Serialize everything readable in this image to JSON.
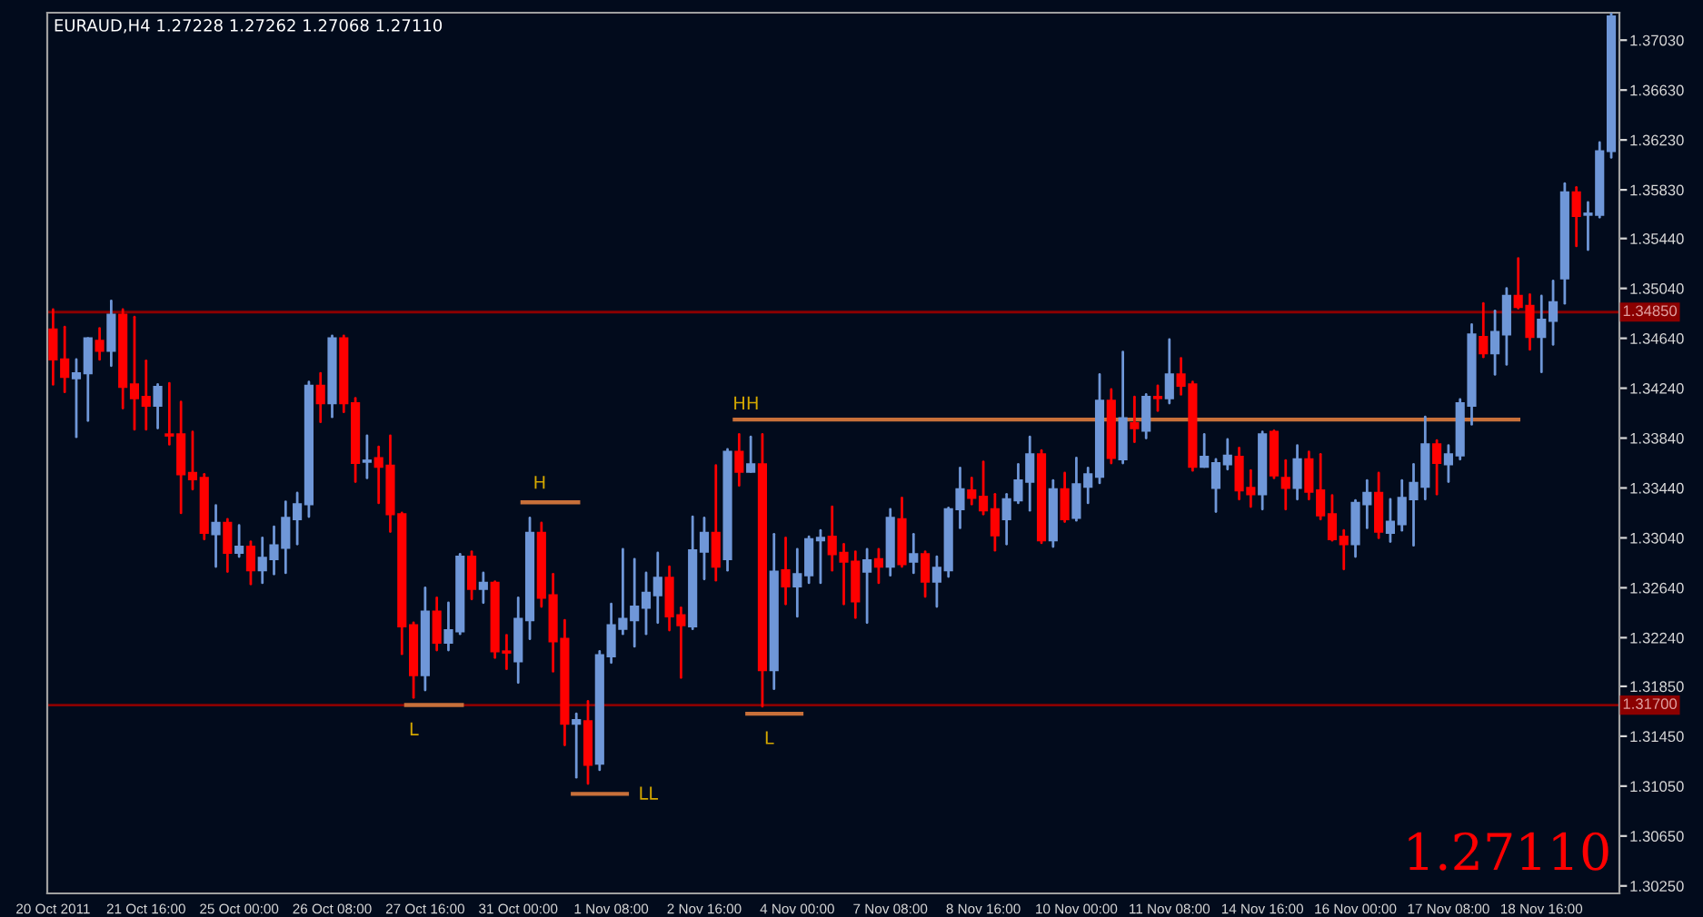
{
  "chart_data": {
    "type": "candlestick",
    "title": "EURAUD,H4 1.27228 1.27262 1.27068 1.27110",
    "categories": [
      "20 Oct 2011",
      null,
      null,
      null,
      null,
      null,
      null,
      null,
      "21 Oct 16:00",
      null,
      null,
      null,
      null,
      null,
      null,
      null,
      "25 Oct 00:00",
      null,
      null,
      null,
      null,
      null,
      null,
      null,
      "26 Oct 08:00",
      null,
      null,
      null,
      null,
      null,
      null,
      null,
      "27 Oct 16:00",
      null,
      null,
      null,
      null,
      null,
      null,
      null,
      "31 Oct 00:00",
      null,
      null,
      null,
      null,
      null,
      null,
      null,
      "1 Nov 08:00",
      null,
      null,
      null,
      null,
      null,
      null,
      null,
      "2 Nov 16:00",
      null,
      null,
      null,
      null,
      null,
      null,
      null,
      "4 Nov 00:00",
      null,
      null,
      null,
      null,
      null,
      null,
      null,
      "7 Nov 08:00",
      null,
      null,
      null,
      null,
      null,
      null,
      null,
      "8 Nov 16:00",
      null,
      null,
      null,
      null,
      null,
      null,
      null,
      "10 Nov 00:00",
      null,
      null,
      null,
      null,
      null,
      null,
      null,
      "11 Nov 08:00",
      null,
      null,
      null,
      null,
      null,
      null,
      null,
      "14 Nov 16:00",
      null,
      null,
      null,
      null,
      null,
      null,
      null,
      "16 Nov 00:00",
      null,
      null,
      null,
      null,
      null,
      null,
      null,
      "17 Nov 08:00",
      null,
      null,
      null,
      null,
      null,
      null,
      null,
      "18 Nov 16:00",
      null,
      null,
      null,
      null,
      null,
      null
    ],
    "ohlc": [
      [
        1.3471,
        1.3487,
        1.3427,
        1.3447
      ],
      [
        1.3447,
        1.3473,
        1.3421,
        1.3433
      ],
      [
        1.3432,
        1.3447,
        1.3385,
        1.3436
      ],
      [
        1.3436,
        1.3464,
        1.3398,
        1.3464
      ],
      [
        1.3462,
        1.3472,
        1.3447,
        1.3454
      ],
      [
        1.3454,
        1.3494,
        1.3442,
        1.3483
      ],
      [
        1.3483,
        1.3487,
        1.3408,
        1.3425
      ],
      [
        1.3427,
        1.3481,
        1.3391,
        1.3416
      ],
      [
        1.3417,
        1.3446,
        1.3391,
        1.341
      ],
      [
        1.341,
        1.3427,
        1.3392,
        1.3425
      ],
      [
        1.3387,
        1.3428,
        1.3379,
        1.3386
      ],
      [
        1.3387,
        1.3413,
        1.3324,
        1.3355
      ],
      [
        1.3356,
        1.3389,
        1.3343,
        1.3351
      ],
      [
        1.3352,
        1.3355,
        1.3303,
        1.3308
      ],
      [
        1.3307,
        1.333,
        1.3281,
        1.3316
      ],
      [
        1.3316,
        1.3319,
        1.3277,
        1.3292
      ],
      [
        1.3292,
        1.3314,
        1.3289,
        1.3297
      ],
      [
        1.3297,
        1.3301,
        1.3267,
        1.3278
      ],
      [
        1.3278,
        1.3304,
        1.3268,
        1.3288
      ],
      [
        1.3287,
        1.3313,
        1.3275,
        1.3298
      ],
      [
        1.3296,
        1.3333,
        1.3276,
        1.332
      ],
      [
        1.3319,
        1.334,
        1.3299,
        1.3331
      ],
      [
        1.3331,
        1.3429,
        1.3321,
        1.3426
      ],
      [
        1.3426,
        1.3436,
        1.3397,
        1.3412
      ],
      [
        1.3412,
        1.3466,
        1.3401,
        1.3464
      ],
      [
        1.3464,
        1.3466,
        1.3405,
        1.3412
      ],
      [
        1.3412,
        1.3416,
        1.3349,
        1.3364
      ],
      [
        1.3365,
        1.3386,
        1.3352,
        1.3366
      ],
      [
        1.3368,
        1.3377,
        1.3332,
        1.3361
      ],
      [
        1.3362,
        1.3386,
        1.3309,
        1.3323
      ],
      [
        1.3323,
        1.3324,
        1.3211,
        1.3233
      ],
      [
        1.3234,
        1.3236,
        1.3176,
        1.3194
      ],
      [
        1.3194,
        1.3264,
        1.3182,
        1.3245
      ],
      [
        1.3245,
        1.3256,
        1.3214,
        1.322
      ],
      [
        1.322,
        1.3252,
        1.3214,
        1.323
      ],
      [
        1.3229,
        1.3291,
        1.3227,
        1.3289
      ],
      [
        1.3289,
        1.3293,
        1.3255,
        1.3263
      ],
      [
        1.3263,
        1.3276,
        1.3252,
        1.3268
      ],
      [
        1.3268,
        1.3269,
        1.3208,
        1.3213
      ],
      [
        1.3213,
        1.3226,
        1.3199,
        1.3212
      ],
      [
        1.3205,
        1.3256,
        1.3188,
        1.3239
      ],
      [
        1.3238,
        1.332,
        1.3223,
        1.3308
      ],
      [
        1.3308,
        1.3316,
        1.3249,
        1.3256
      ],
      [
        1.3258,
        1.3275,
        1.3197,
        1.3221
      ],
      [
        1.3223,
        1.3238,
        1.3138,
        1.3155
      ],
      [
        1.3155,
        1.3163,
        1.3112,
        1.3158
      ],
      [
        1.3157,
        1.3173,
        1.3107,
        1.3122
      ],
      [
        1.3123,
        1.3213,
        1.3118,
        1.321
      ],
      [
        1.3209,
        1.3251,
        1.3204,
        1.3234
      ],
      [
        1.3231,
        1.3295,
        1.3227,
        1.3239
      ],
      [
        1.3238,
        1.3287,
        1.3217,
        1.3249
      ],
      [
        1.3248,
        1.3276,
        1.3227,
        1.326
      ],
      [
        1.3258,
        1.3292,
        1.3236,
        1.3272
      ],
      [
        1.3272,
        1.3281,
        1.323,
        1.3241
      ],
      [
        1.3242,
        1.3248,
        1.3192,
        1.3234
      ],
      [
        1.3233,
        1.3321,
        1.3231,
        1.3294
      ],
      [
        1.3293,
        1.332,
        1.3271,
        1.3308
      ],
      [
        1.3308,
        1.3362,
        1.327,
        1.3281
      ],
      [
        1.3287,
        1.3375,
        1.3278,
        1.3373
      ],
      [
        1.3373,
        1.3387,
        1.3346,
        1.3357
      ],
      [
        1.3357,
        1.3385,
        1.3357,
        1.3363
      ],
      [
        1.3363,
        1.3387,
        1.3169,
        1.3198
      ],
      [
        1.3198,
        1.3307,
        1.3183,
        1.3277
      ],
      [
        1.3278,
        1.3304,
        1.3251,
        1.3265
      ],
      [
        1.3265,
        1.3295,
        1.3241,
        1.3275
      ],
      [
        1.3274,
        1.3305,
        1.3268,
        1.3303
      ],
      [
        1.3302,
        1.331,
        1.3268,
        1.3304
      ],
      [
        1.3305,
        1.3329,
        1.3278,
        1.3291
      ],
      [
        1.3292,
        1.3299,
        1.3251,
        1.3285
      ],
      [
        1.3285,
        1.3293,
        1.324,
        1.3253
      ],
      [
        1.3277,
        1.3295,
        1.3236,
        1.3286
      ],
      [
        1.3287,
        1.3295,
        1.3268,
        1.3281
      ],
      [
        1.3281,
        1.3327,
        1.3274,
        1.332
      ],
      [
        1.3319,
        1.3336,
        1.3281,
        1.3283
      ],
      [
        1.3285,
        1.3307,
        1.3276,
        1.3291
      ],
      [
        1.3291,
        1.3293,
        1.3257,
        1.3269
      ],
      [
        1.3269,
        1.3289,
        1.3249,
        1.328
      ],
      [
        1.3278,
        1.3328,
        1.3273,
        1.3327
      ],
      [
        1.3327,
        1.336,
        1.3312,
        1.3343
      ],
      [
        1.3342,
        1.3352,
        1.3331,
        1.3336
      ],
      [
        1.3337,
        1.3365,
        1.3323,
        1.3326
      ],
      [
        1.3327,
        1.3339,
        1.3294,
        1.3306
      ],
      [
        1.3319,
        1.3339,
        1.3299,
        1.3335
      ],
      [
        1.3334,
        1.3363,
        1.3332,
        1.335
      ],
      [
        1.3349,
        1.3385,
        1.3326,
        1.3371
      ],
      [
        1.3371,
        1.3374,
        1.33,
        1.3302
      ],
      [
        1.3302,
        1.335,
        1.3297,
        1.3343
      ],
      [
        1.3343,
        1.3356,
        1.3317,
        1.3319
      ],
      [
        1.332,
        1.3368,
        1.3318,
        1.3347
      ],
      [
        1.3345,
        1.336,
        1.3332,
        1.3355
      ],
      [
        1.3353,
        1.3435,
        1.3348,
        1.3414
      ],
      [
        1.3414,
        1.3423,
        1.3364,
        1.3368
      ],
      [
        1.3367,
        1.3453,
        1.3364,
        1.34
      ],
      [
        1.3396,
        1.3417,
        1.3381,
        1.3392
      ],
      [
        1.339,
        1.3419,
        1.3384,
        1.3417
      ],
      [
        1.3417,
        1.3426,
        1.3406,
        1.3416
      ],
      [
        1.3416,
        1.3463,
        1.3412,
        1.3435
      ],
      [
        1.3435,
        1.3448,
        1.3419,
        1.3426
      ],
      [
        1.3427,
        1.3429,
        1.3358,
        1.3361
      ],
      [
        1.3361,
        1.3387,
        1.3361,
        1.3369
      ],
      [
        1.3344,
        1.3367,
        1.3325,
        1.3364
      ],
      [
        1.3363,
        1.3383,
        1.3359,
        1.337
      ],
      [
        1.3369,
        1.3376,
        1.3335,
        1.3342
      ],
      [
        1.3344,
        1.3358,
        1.3329,
        1.3339
      ],
      [
        1.3339,
        1.3389,
        1.3327,
        1.3387
      ],
      [
        1.3389,
        1.339,
        1.3352,
        1.3354
      ],
      [
        1.3352,
        1.3366,
        1.3327,
        1.3344
      ],
      [
        1.3344,
        1.3378,
        1.3335,
        1.3367
      ],
      [
        1.3367,
        1.3373,
        1.3335,
        1.3341
      ],
      [
        1.3342,
        1.3371,
        1.3319,
        1.3322
      ],
      [
        1.3323,
        1.3338,
        1.3302,
        1.3303
      ],
      [
        1.3305,
        1.331,
        1.3279,
        1.3299
      ],
      [
        1.3299,
        1.3334,
        1.3289,
        1.3332
      ],
      [
        1.3331,
        1.335,
        1.3312,
        1.334
      ],
      [
        1.334,
        1.3356,
        1.3304,
        1.3309
      ],
      [
        1.3308,
        1.3335,
        1.3301,
        1.3317
      ],
      [
        1.3315,
        1.335,
        1.331,
        1.3336
      ],
      [
        1.3335,
        1.3363,
        1.3298,
        1.3348
      ],
      [
        1.3345,
        1.3401,
        1.3335,
        1.3379
      ],
      [
        1.3379,
        1.3382,
        1.3339,
        1.3364
      ],
      [
        1.3363,
        1.3378,
        1.3349,
        1.3371
      ],
      [
        1.337,
        1.3415,
        1.3367,
        1.3412
      ],
      [
        1.341,
        1.3475,
        1.3395,
        1.3467
      ],
      [
        1.3465,
        1.3492,
        1.3449,
        1.3452
      ],
      [
        1.3452,
        1.3486,
        1.3435,
        1.3469
      ],
      [
        1.3467,
        1.3504,
        1.3443,
        1.3498
      ],
      [
        1.3498,
        1.3528,
        1.3488,
        1.3489
      ],
      [
        1.349,
        1.3499,
        1.3455,
        1.3465
      ],
      [
        1.3465,
        1.3498,
        1.3437,
        1.3479
      ],
      [
        1.3478,
        1.351,
        1.3459,
        1.3493
      ],
      [
        1.3512,
        1.3588,
        1.3492,
        1.3581
      ],
      [
        1.3581,
        1.3585,
        1.3538,
        1.3562
      ],
      [
        1.3563,
        1.3573,
        1.3535,
        1.3564
      ],
      [
        1.3563,
        1.3621,
        1.3561,
        1.3614
      ],
      [
        1.3614,
        1.3724,
        1.3609,
        1.3722
      ]
    ],
    "ylim": [
      1.3019,
      1.3725
    ],
    "yticks": [
      {
        "value": 1.3703,
        "label": "1.37030"
      },
      {
        "value": 1.3663,
        "label": "1.36630"
      },
      {
        "value": 1.3623,
        "label": "1.36230"
      },
      {
        "value": 1.3583,
        "label": "1.35830"
      },
      {
        "value": 1.3544,
        "label": "1.35440"
      },
      {
        "value": 1.3504,
        "label": "1.35040"
      },
      {
        "value": 1.3464,
        "label": "1.34640"
      },
      {
        "value": 1.3424,
        "label": "1.34240"
      },
      {
        "value": 1.3384,
        "label": "1.33840"
      },
      {
        "value": 1.3344,
        "label": "1.33440"
      },
      {
        "value": 1.3304,
        "label": "1.33040"
      },
      {
        "value": 1.3264,
        "label": "1.32640"
      },
      {
        "value": 1.3224,
        "label": "1.32240"
      },
      {
        "value": 1.3185,
        "label": "1.31850"
      },
      {
        "value": 1.3145,
        "label": "1.31450"
      },
      {
        "value": 1.3105,
        "label": "1.31050"
      },
      {
        "value": 1.3065,
        "label": "1.30650"
      },
      {
        "value": 1.3025,
        "label": "1.30250"
      }
    ],
    "ref_lines": [
      {
        "axis": "y",
        "value": 1.3485,
        "label": "1.34850",
        "color": "#8b0000"
      },
      {
        "axis": "y",
        "value": 1.317,
        "label": "1.31700",
        "color": "#8b0000"
      }
    ],
    "annotations": [
      "H",
      "L",
      "LL",
      "L",
      "HH",
      "1.27110"
    ],
    "grid": false,
    "legend": false
  }
}
